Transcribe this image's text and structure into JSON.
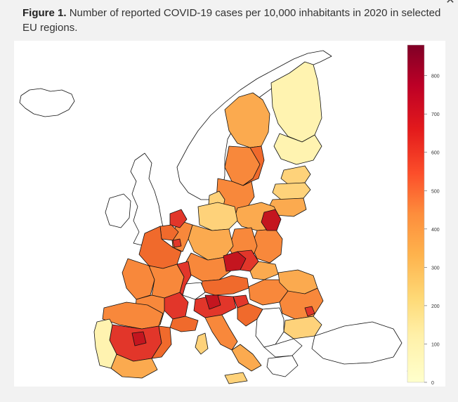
{
  "caption": {
    "label": "Figure 1.",
    "text": "Number of reported COVID-19 cases per 10,000 inhabitants in 2020 in selected EU regions."
  },
  "colorbar": {
    "min": 0,
    "max": 880,
    "ticks": [
      "800",
      "700",
      "600",
      "500",
      "400",
      "300",
      "200",
      "100",
      "0"
    ],
    "tick_values": [
      800,
      700,
      600,
      500,
      400,
      300,
      200,
      100,
      0
    ],
    "colors": [
      "#ffffcc",
      "#fed976",
      "#feb24c",
      "#fd8d3c",
      "#fc4e2a",
      "#e31a1c",
      "#bd0026",
      "#800026"
    ]
  },
  "legend_colors": {
    "low": "#fff3b0",
    "light": "#fed27a",
    "mid": "#fbaa4f",
    "orange": "#f8883b",
    "deep": "#f06a2c",
    "red": "#e2362a",
    "darkred": "#c4151f",
    "nodata": "#ffffff"
  }
}
